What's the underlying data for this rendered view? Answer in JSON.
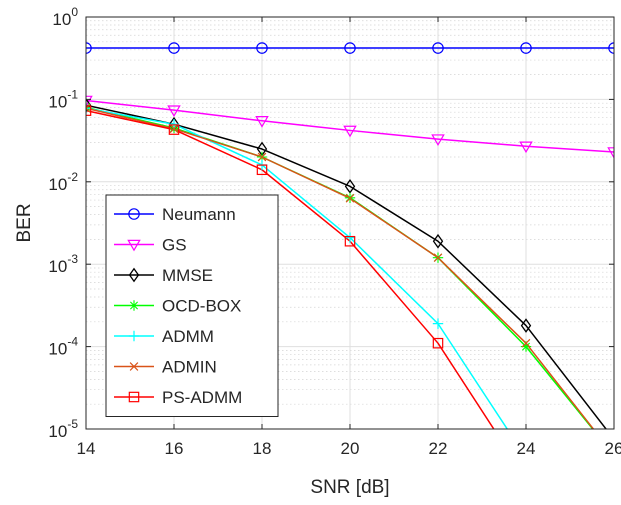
{
  "chart_data": {
    "type": "line",
    "title": "",
    "xlabel": "SNR [dB]",
    "ylabel": "BER",
    "xlim": [
      14,
      26
    ],
    "ylim": [
      1e-05,
      1
    ],
    "y_scale": "log",
    "grid": true,
    "minor_grid": true,
    "legend_position": "lower-left",
    "x_ticks": [
      14,
      16,
      18,
      20,
      22,
      24,
      26
    ],
    "x_tick_labels": [
      "14",
      "16",
      "18",
      "20",
      "22",
      "24",
      "26"
    ],
    "y_ticks": [
      {
        "value": 1e-05,
        "base": "10",
        "exp": "-5"
      },
      {
        "value": 0.0001,
        "base": "10",
        "exp": "-4"
      },
      {
        "value": 0.001,
        "base": "10",
        "exp": "-3"
      },
      {
        "value": 0.01,
        "base": "10",
        "exp": "-2"
      },
      {
        "value": 0.1,
        "base": "10",
        "exp": "-1"
      },
      {
        "value": 1,
        "base": "10",
        "exp": "0"
      }
    ],
    "series": [
      {
        "name": "Neumann",
        "color": "#0000ff",
        "marker": "circle",
        "x": [
          14,
          16,
          18,
          20,
          22,
          24,
          26
        ],
        "y": [
          0.42,
          0.42,
          0.42,
          0.42,
          0.42,
          0.42,
          0.42
        ]
      },
      {
        "name": "GS",
        "color": "#ff00ff",
        "marker": "triangle-down",
        "x": [
          14,
          16,
          18,
          20,
          22,
          24,
          26
        ],
        "y": [
          0.097,
          0.074,
          0.055,
          0.042,
          0.033,
          0.027,
          0.023
        ]
      },
      {
        "name": "MMSE",
        "color": "#000000",
        "marker": "diamond",
        "x": [
          14,
          16,
          18,
          20,
          22,
          24,
          26
        ],
        "y": [
          0.085,
          0.05,
          0.025,
          0.0088,
          0.0019,
          0.00018,
          7.5e-06
        ]
      },
      {
        "name": "OCD-BOX",
        "color": "#00ff00",
        "marker": "asterisk",
        "x": [
          14,
          16,
          18,
          20,
          22,
          24,
          26
        ],
        "y": [
          0.08,
          0.045,
          0.02,
          0.0064,
          0.0012,
          0.0001,
          4.8e-06
        ]
      },
      {
        "name": "ADMM",
        "color": "#00ffff",
        "marker": "plus",
        "x": [
          14,
          16,
          18,
          20,
          22,
          24
        ],
        "y": [
          0.078,
          0.05,
          0.016,
          0.0021,
          0.00019,
          4.5e-06
        ]
      },
      {
        "name": "ADMIN",
        "color": "#d95319",
        "marker": "x",
        "x": [
          14,
          16,
          18,
          20,
          22,
          24,
          26
        ],
        "y": [
          0.078,
          0.044,
          0.02,
          0.0063,
          0.0012,
          0.00011,
          4.8e-06
        ]
      },
      {
        "name": "PS-ADMM",
        "color": "#ff0000",
        "marker": "square",
        "x": [
          14,
          16,
          18,
          20,
          22,
          24
        ],
        "y": [
          0.073,
          0.043,
          0.014,
          0.0019,
          0.00011,
          2.5e-06
        ]
      }
    ]
  }
}
